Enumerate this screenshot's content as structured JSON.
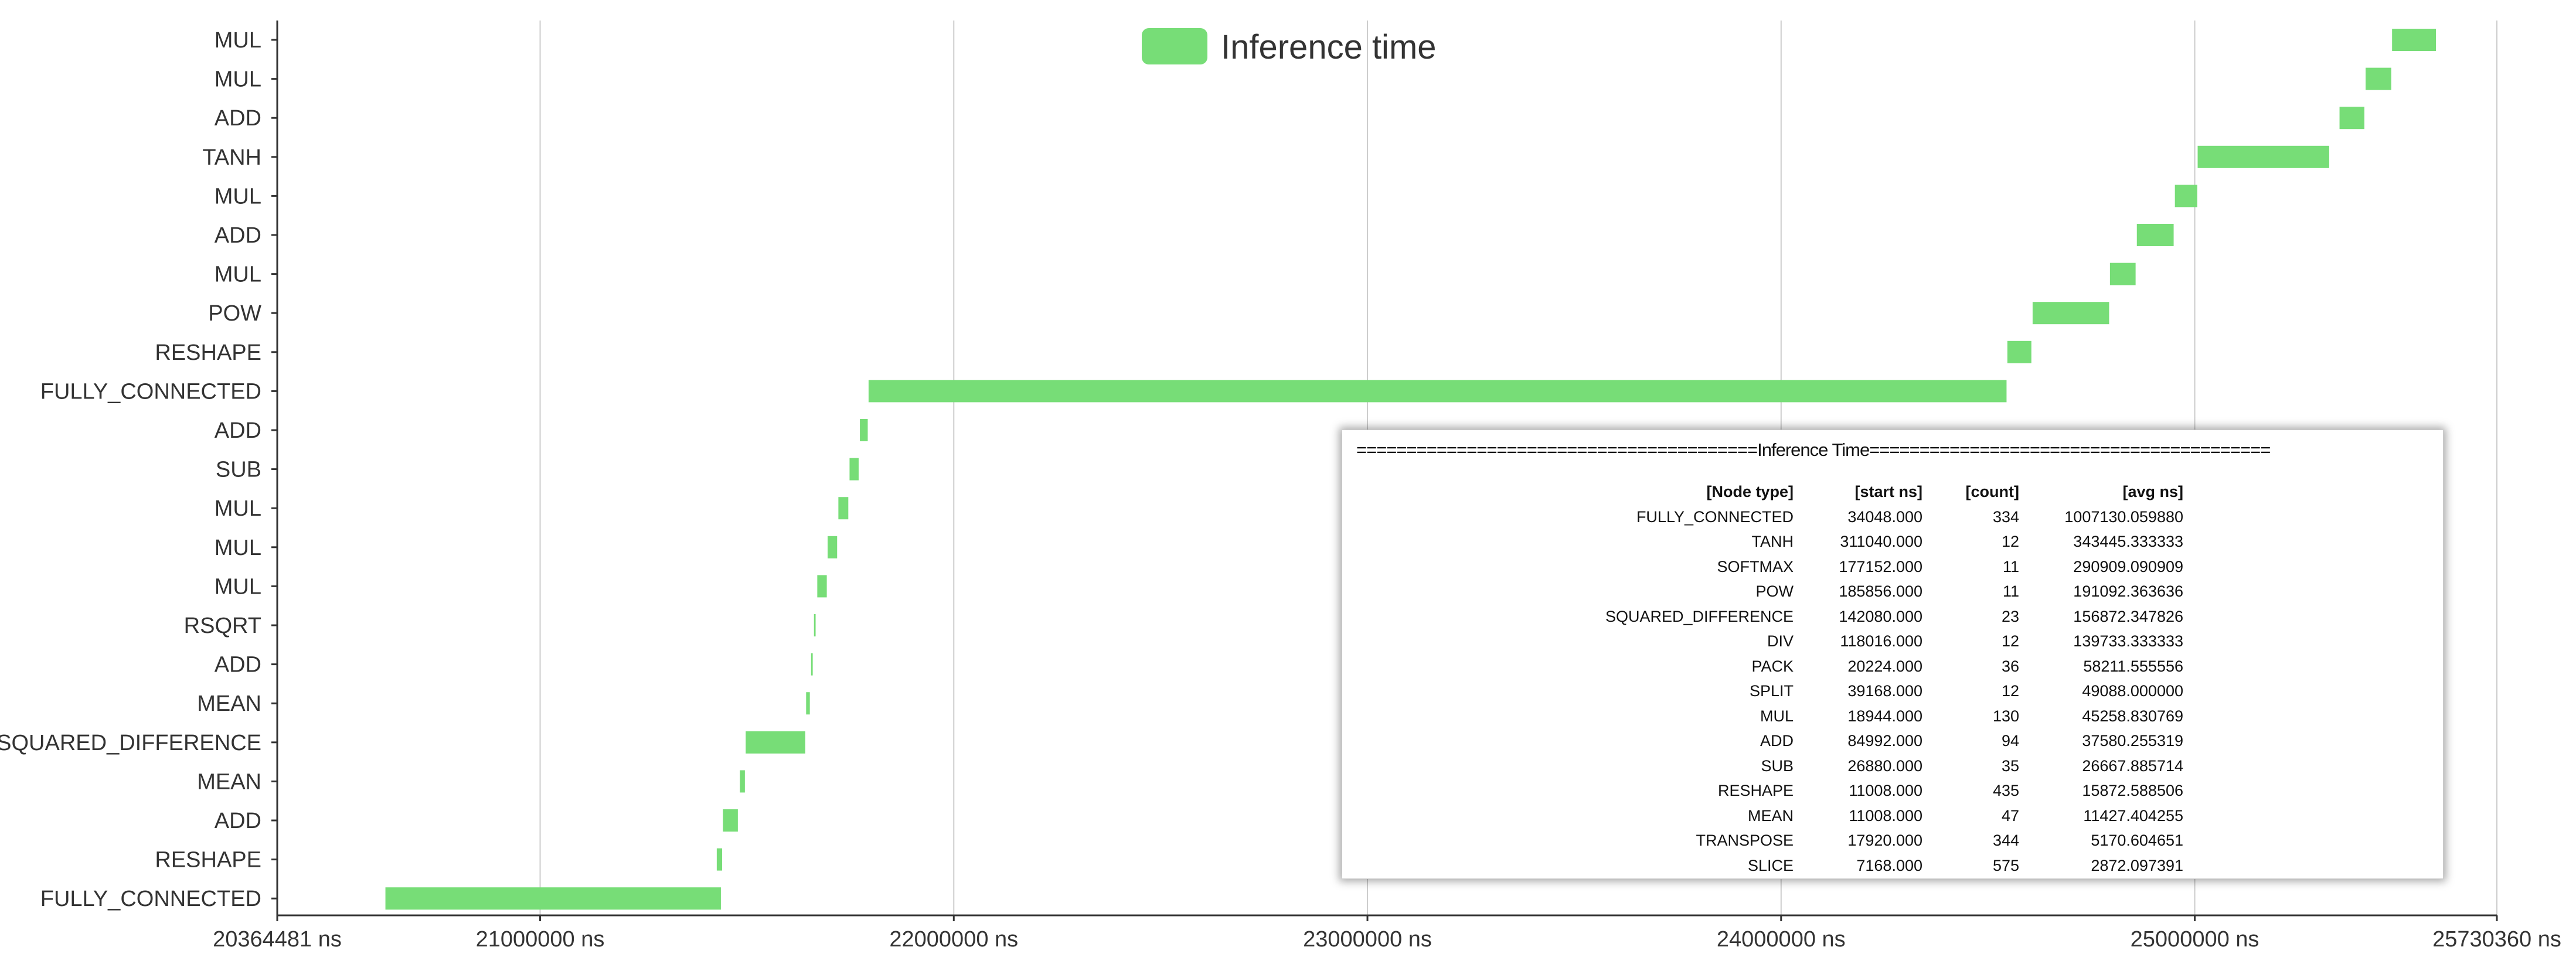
{
  "chart_data": {
    "type": "bar",
    "orientation": "horizontal-timeline",
    "series": [
      {
        "name": "Inference time",
        "color": "#77dd77"
      }
    ],
    "legend_position": "top-center",
    "grid": {
      "vertical": true,
      "horizontal": false
    },
    "xlim": [
      20364481,
      25730360
    ],
    "x_ticks": [
      {
        "value": 20364481,
        "label": "20364481 ns"
      },
      {
        "value": 21000000,
        "label": "21000000 ns"
      },
      {
        "value": 22000000,
        "label": "22000000 ns"
      },
      {
        "value": 23000000,
        "label": "23000000 ns"
      },
      {
        "value": 24000000,
        "label": "24000000 ns"
      },
      {
        "value": 25000000,
        "label": "25000000 ns"
      },
      {
        "value": 25730360,
        "label": "25730360 ns"
      }
    ],
    "rows": [
      {
        "label": "MUL",
        "start": 25477000,
        "end": 25583000
      },
      {
        "label": "MUL",
        "start": 25413000,
        "end": 25475000
      },
      {
        "label": "ADD",
        "start": 25350000,
        "end": 25410000
      },
      {
        "label": "TANH",
        "start": 25007000,
        "end": 25325000
      },
      {
        "label": "MUL",
        "start": 24952000,
        "end": 25006000
      },
      {
        "label": "ADD",
        "start": 24860000,
        "end": 24949000
      },
      {
        "label": "MUL",
        "start": 24795000,
        "end": 24857000
      },
      {
        "label": "POW",
        "start": 24608000,
        "end": 24793000
      },
      {
        "label": "RESHAPE",
        "start": 24547000,
        "end": 24605000
      },
      {
        "label": "FULLY_CONNECTED",
        "start": 21794000,
        "end": 24545000
      },
      {
        "label": "ADD",
        "start": 21773000,
        "end": 21792000
      },
      {
        "label": "SUB",
        "start": 21748000,
        "end": 21770000
      },
      {
        "label": "MUL",
        "start": 21721000,
        "end": 21745000
      },
      {
        "label": "MUL",
        "start": 21695000,
        "end": 21718000
      },
      {
        "label": "MUL",
        "start": 21670000,
        "end": 21693000
      },
      {
        "label": "RSQRT",
        "start": 21662000,
        "end": 21666000
      },
      {
        "label": "ADD",
        "start": 21655000,
        "end": 21659000
      },
      {
        "label": "MEAN",
        "start": 21643000,
        "end": 21652000
      },
      {
        "label": "SQUARED_DIFFERENCE",
        "start": 21497000,
        "end": 21641000
      },
      {
        "label": "MEAN",
        "start": 21483000,
        "end": 21495000
      },
      {
        "label": "ADD",
        "start": 21442000,
        "end": 21478000
      },
      {
        "label": "RESHAPE",
        "start": 21427000,
        "end": 21440000
      },
      {
        "label": "FULLY_CONNECTED",
        "start": 20626000,
        "end": 21437000
      }
    ]
  },
  "stats_panel": {
    "banner": "========================================Inference Time========================================",
    "headers": [
      "[Node type]",
      "[start ns]",
      "[count]",
      "[avg ns]"
    ],
    "rows": [
      [
        "FULLY_CONNECTED",
        "34048.000",
        "334",
        "1007130.059880"
      ],
      [
        "TANH",
        "311040.000",
        "12",
        "343445.333333"
      ],
      [
        "SOFTMAX",
        "177152.000",
        "11",
        "290909.090909"
      ],
      [
        "POW",
        "185856.000",
        "11",
        "191092.363636"
      ],
      [
        "SQUARED_DIFFERENCE",
        "142080.000",
        "23",
        "156872.347826"
      ],
      [
        "DIV",
        "118016.000",
        "12",
        "139733.333333"
      ],
      [
        "PACK",
        "20224.000",
        "36",
        "58211.555556"
      ],
      [
        "SPLIT",
        "39168.000",
        "12",
        "49088.000000"
      ],
      [
        "MUL",
        "18944.000",
        "130",
        "45258.830769"
      ],
      [
        "ADD",
        "84992.000",
        "94",
        "37580.255319"
      ],
      [
        "SUB",
        "26880.000",
        "35",
        "26667.885714"
      ],
      [
        "RESHAPE",
        "11008.000",
        "435",
        "15872.588506"
      ],
      [
        "MEAN",
        "11008.000",
        "47",
        "11427.404255"
      ],
      [
        "TRANSPOSE",
        "17920.000",
        "344",
        "5170.604651"
      ],
      [
        "SLICE",
        "7168.000",
        "575",
        "2872.097391"
      ]
    ]
  }
}
